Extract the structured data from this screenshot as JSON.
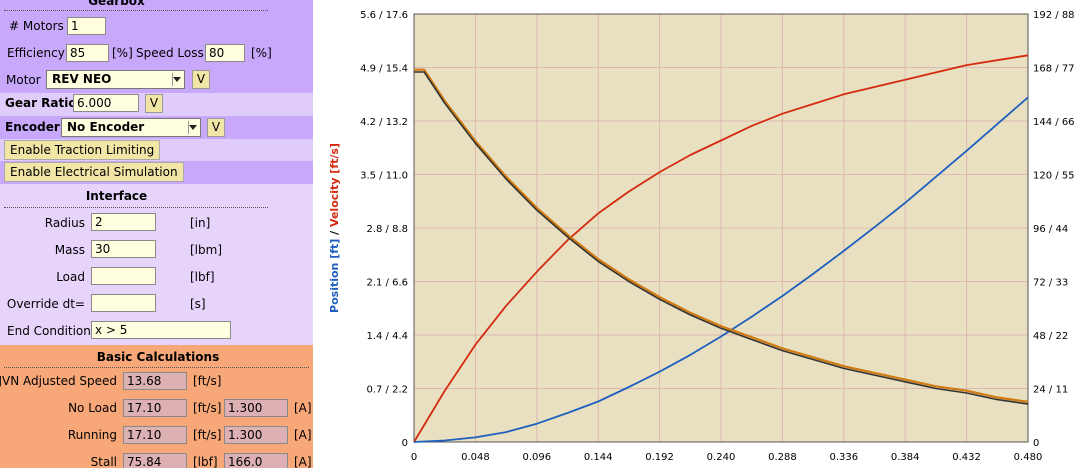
{
  "gearbox": {
    "title": "Gearbox",
    "motors_label": "# Motors",
    "motors_value": "1",
    "efficiency_label": "Efficiency",
    "efficiency_value": "85",
    "efficiency_unit": "[%]",
    "speed_loss_label": "Speed Loss",
    "speed_loss_value": "80",
    "speed_loss_unit": "[%]",
    "motor_label": "Motor",
    "motor_value": "REV NEO",
    "gear_ratio_label": "Gear Ratio",
    "gear_ratio_value": "6.000",
    "encoder_label": "Encoder",
    "encoder_value": "No Encoder",
    "v_label": "V",
    "traction_button": "Enable Traction Limiting",
    "electrical_button": "Enable Electrical Simulation"
  },
  "interface": {
    "title": "Interface",
    "radius_label": "Radius",
    "radius_value": "2",
    "radius_unit": "[in]",
    "mass_label": "Mass",
    "mass_value": "30",
    "mass_unit": "[lbm]",
    "load_label": "Load",
    "load_value": "",
    "load_unit": "[lbf]",
    "dt_label": "Override dt=",
    "dt_value": "",
    "dt_unit": "[s]",
    "end_label": "End Condition",
    "end_value": "x > 5"
  },
  "basic": {
    "title": "Basic Calculations",
    "jvn_label": "JVN Adjusted Speed",
    "jvn_value": "13.68",
    "jvn_unit": "[ft/s]",
    "noload_label": "No Load",
    "noload_speed": "17.10",
    "noload_speed_unit": "[ft/s]",
    "noload_current": "1.300",
    "noload_current_unit": "[A]",
    "running_label": "Running",
    "running_speed": "17.10",
    "running_speed_unit": "[ft/s]",
    "running_current": "1.300",
    "running_current_unit": "[A]",
    "stall_label": "Stall",
    "stall_force": "75.84",
    "stall_force_unit": "[lbf]",
    "stall_current": "166.0",
    "stall_current_unit": "[A]"
  },
  "colors": {
    "gearbox_bg": "#c8a8fa",
    "interface_bg": "#e6d4fb",
    "basic_bg": "#f8a878",
    "plot_bg": "#e8e0c0",
    "grid": "#dcb8b4",
    "position": "#1f5fbf",
    "velocity": "#d42a10",
    "current_dark": "#333333",
    "current_orange": "#d07a10"
  },
  "chart_data": {
    "type": "line",
    "ylabel_parts": [
      "Position [ft]",
      "/",
      "Velocity [ft/s]"
    ],
    "x_ticks": [
      "0",
      "0.048",
      "0.096",
      "0.144",
      "0.192",
      "0.240",
      "0.288",
      "0.336",
      "0.384",
      "0.432",
      "0.480"
    ],
    "left_ticks": [
      "0",
      "0.7 / 2.2",
      "1.4 / 4.4",
      "2.1 / 6.6",
      "2.8 / 8.8",
      "3.5 / 11.0",
      "4.2 / 13.2",
      "4.9 / 15.4",
      "5.6 / 17.6"
    ],
    "right_ticks": [
      "0",
      "24 / 11",
      "48 / 22",
      "72 / 33",
      "96 / 44",
      "120 / 55",
      "144 / 66",
      "168 / 77",
      "192 / 88"
    ],
    "xlim": [
      0,
      0.48
    ],
    "left_ylim": [
      0,
      5.6
    ],
    "velocity_ylim": [
      0,
      17.6
    ],
    "right_ylim": [
      0,
      192
    ],
    "grid": true,
    "series": [
      {
        "axis": "velocity",
        "x": [
          0,
          0.024,
          0.048,
          0.072,
          0.096,
          0.12,
          0.144,
          0.168,
          0.192,
          0.216,
          0.24,
          0.264,
          0.288,
          0.312,
          0.336,
          0.36,
          0.384,
          0.408,
          0.432,
          0.456,
          0.48
        ],
        "y": [
          0,
          2.1,
          4.0,
          5.6,
          7.0,
          8.3,
          9.4,
          10.3,
          11.1,
          11.8,
          12.4,
          13.0,
          13.5,
          13.9,
          14.3,
          14.6,
          14.9,
          15.2,
          15.5,
          15.7,
          15.9
        ]
      },
      {
        "axis": "position",
        "x": [
          0,
          0.024,
          0.048,
          0.072,
          0.096,
          0.12,
          0.144,
          0.168,
          0.192,
          0.216,
          0.24,
          0.264,
          0.288,
          0.312,
          0.336,
          0.36,
          0.384,
          0.408,
          0.432,
          0.456,
          0.48
        ],
        "y": [
          0,
          0.02,
          0.06,
          0.13,
          0.24,
          0.38,
          0.53,
          0.72,
          0.92,
          1.14,
          1.38,
          1.64,
          1.91,
          2.2,
          2.5,
          2.81,
          3.13,
          3.47,
          3.81,
          4.16,
          4.51
        ]
      },
      {
        "axis": "right",
        "x": [
          0,
          0.008,
          0.024,
          0.048,
          0.072,
          0.096,
          0.12,
          0.144,
          0.168,
          0.192,
          0.216,
          0.24,
          0.264,
          0.288,
          0.312,
          0.336,
          0.36,
          0.384,
          0.408,
          0.432,
          0.456,
          0.48
        ],
        "y": [
          167,
          167,
          153,
          135,
          119,
          105,
          93,
          82,
          73,
          65,
          58,
          52,
          47,
          42,
          38,
          34,
          31,
          28,
          25,
          23,
          20,
          18
        ]
      },
      {
        "axis": "right",
        "x": [
          0,
          0.008,
          0.024,
          0.048,
          0.072,
          0.096,
          0.12,
          0.144,
          0.168,
          0.192,
          0.216,
          0.24,
          0.264,
          0.288,
          0.312,
          0.336,
          0.36,
          0.384,
          0.408,
          0.432,
          0.456,
          0.48
        ],
        "y": [
          166,
          166,
          152,
          134,
          118,
          104,
          92,
          81,
          72,
          64,
          57,
          51,
          46,
          41,
          37,
          33,
          30,
          27,
          24,
          22,
          19,
          17
        ]
      }
    ]
  }
}
